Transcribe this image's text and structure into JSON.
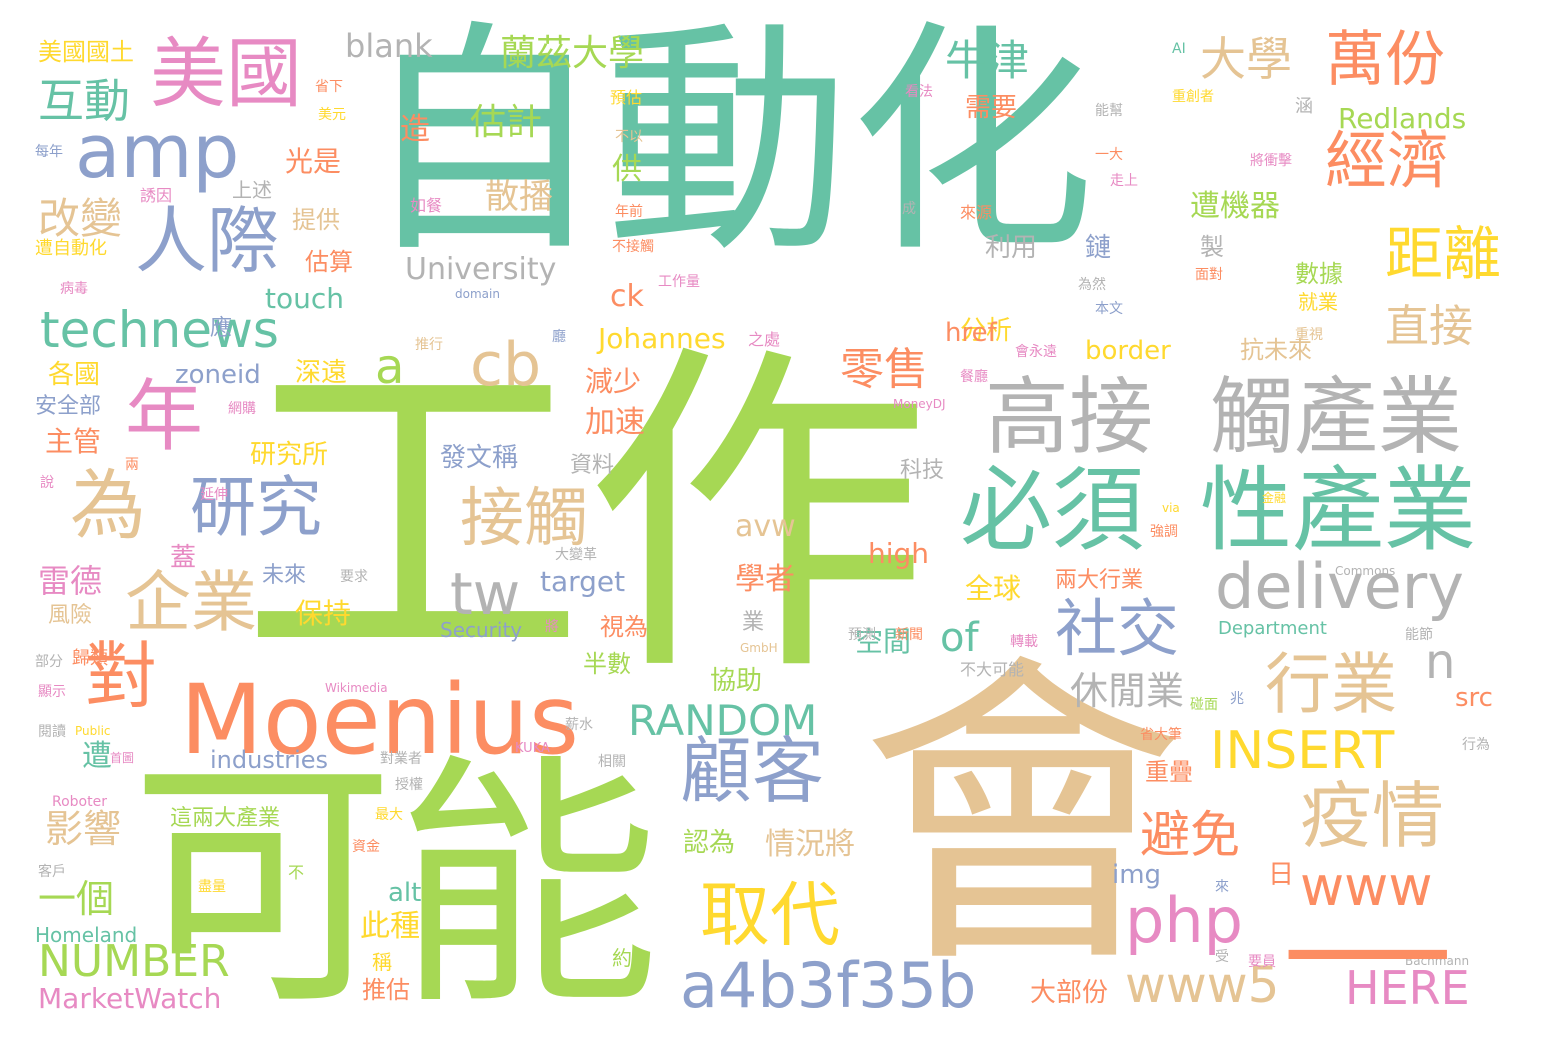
{
  "colors": {
    "teal": "#66c2a5",
    "green": "#a6d854",
    "tan": "#e5c494",
    "orange": "#fc8d62",
    "blue": "#8da0cb",
    "pink": "#e78ac3",
    "yellow": "#ffd92f",
    "gray": "#b3b3b3"
  },
  "words": [
    {
      "text": "自動化",
      "color": "teal"
    },
    {
      "text": "工作",
      "color": "green"
    },
    {
      "text": "會",
      "color": "tan"
    },
    {
      "text": "可能",
      "color": "green"
    },
    {
      "text": "Moenius",
      "color": "orange"
    },
    {
      "text": "高接",
      "color": "gray"
    },
    {
      "text": "觸產業",
      "color": "gray"
    },
    {
      "text": "必須",
      "color": "teal"
    },
    {
      "text": "性產業",
      "color": "teal"
    },
    {
      "text": "美國",
      "color": "pink"
    },
    {
      "text": "amp",
      "color": "blue"
    },
    {
      "text": "人際",
      "color": "blue"
    },
    {
      "text": "technews",
      "color": "teal"
    },
    {
      "text": "年",
      "color": "pink"
    },
    {
      "text": "為",
      "color": "tan"
    },
    {
      "text": "研究",
      "color": "blue"
    },
    {
      "text": "企業",
      "color": "tan"
    },
    {
      "text": "對",
      "color": "orange"
    },
    {
      "text": "萬份",
      "color": "orange"
    },
    {
      "text": "經濟",
      "color": "orange"
    },
    {
      "text": "距離",
      "color": "yellow"
    },
    {
      "text": "直接",
      "color": "tan"
    },
    {
      "text": "delivery",
      "color": "gray"
    },
    {
      "text": "社交",
      "color": "blue"
    },
    {
      "text": "行業",
      "color": "tan"
    },
    {
      "text": "疫情",
      "color": "tan"
    },
    {
      "text": "www",
      "color": "orange"
    },
    {
      "text": "顧客",
      "color": "blue"
    },
    {
      "text": "取代",
      "color": "yellow"
    },
    {
      "text": "php",
      "color": "pink"
    },
    {
      "text": "a4b3f35b",
      "color": "blue"
    },
    {
      "text": "www5",
      "color": "tan"
    },
    {
      "text": "HERE",
      "color": "pink"
    },
    {
      "text": "INSERT",
      "color": "yellow"
    },
    {
      "text": "RANDOM",
      "color": "teal"
    },
    {
      "text": "NUMBER",
      "color": "green"
    },
    {
      "text": "接觸",
      "color": "tan"
    },
    {
      "text": "tw",
      "color": "gray"
    },
    {
      "text": "cb",
      "color": "tan"
    },
    {
      "text": "a",
      "color": "green"
    },
    {
      "text": "牛津",
      "color": "teal"
    },
    {
      "text": "大學",
      "color": "tan"
    },
    {
      "text": "互動",
      "color": "teal"
    },
    {
      "text": "美國國土",
      "color": "yellow"
    },
    {
      "text": "blank",
      "color": "gray"
    },
    {
      "text": "蘭茲大學",
      "color": "green"
    },
    {
      "text": "估計",
      "color": "green"
    },
    {
      "text": "散播",
      "color": "tan"
    },
    {
      "text": "University",
      "color": "gray"
    },
    {
      "text": "改變",
      "color": "tan"
    },
    {
      "text": "光是",
      "color": "orange"
    },
    {
      "text": "上述",
      "color": "gray"
    },
    {
      "text": "提供",
      "color": "tan"
    },
    {
      "text": "估算",
      "color": "orange"
    },
    {
      "text": "touch",
      "color": "teal"
    },
    {
      "text": "zoneid",
      "color": "blue"
    },
    {
      "text": "深遠",
      "color": "yellow"
    },
    {
      "text": "各國",
      "color": "yellow"
    },
    {
      "text": "安全部",
      "color": "blue"
    },
    {
      "text": "主管",
      "color": "orange"
    },
    {
      "text": "研究所",
      "color": "yellow"
    },
    {
      "text": "雷德",
      "color": "pink"
    },
    {
      "text": "風險",
      "color": "tan"
    },
    {
      "text": "蓋",
      "color": "pink"
    },
    {
      "text": "未來",
      "color": "blue"
    },
    {
      "text": "保持",
      "color": "yellow"
    },
    {
      "text": "遭",
      "color": "teal"
    },
    {
      "text": "影響",
      "color": "tan"
    },
    {
      "text": "一個",
      "color": "green"
    },
    {
      "text": "industries",
      "color": "blue"
    },
    {
      "text": "這兩大產業",
      "color": "green"
    },
    {
      "text": "MarketWatch",
      "color": "pink"
    },
    {
      "text": "Homeland",
      "color": "teal"
    },
    {
      "text": "零售",
      "color": "orange"
    },
    {
      "text": "分析",
      "color": "yellow"
    },
    {
      "text": "href",
      "color": "orange"
    },
    {
      "text": "border",
      "color": "yellow"
    },
    {
      "text": "抗未來",
      "color": "tan"
    },
    {
      "text": "Redlands",
      "color": "green"
    },
    {
      "text": "遭機器",
      "color": "green"
    },
    {
      "text": "數據",
      "color": "green"
    },
    {
      "text": "就業",
      "color": "yellow"
    },
    {
      "text": "需要",
      "color": "orange"
    },
    {
      "text": "利用",
      "color": "gray"
    },
    {
      "text": "鏈",
      "color": "blue"
    },
    {
      "text": "製",
      "color": "gray"
    },
    {
      "text": "造",
      "color": "orange"
    },
    {
      "text": "供",
      "color": "green"
    },
    {
      "text": "ck",
      "color": "orange"
    },
    {
      "text": "Johannes",
      "color": "yellow"
    },
    {
      "text": "減少",
      "color": "orange"
    },
    {
      "text": "加速",
      "color": "orange"
    },
    {
      "text": "發文稱",
      "color": "blue"
    },
    {
      "text": "資料",
      "color": "gray"
    },
    {
      "text": "科技",
      "color": "gray"
    },
    {
      "text": "avw",
      "color": "tan"
    },
    {
      "text": "high",
      "color": "orange"
    },
    {
      "text": "全球",
      "color": "yellow"
    },
    {
      "text": "學者",
      "color": "orange"
    },
    {
      "text": "target",
      "color": "blue"
    },
    {
      "text": "Security",
      "color": "blue"
    },
    {
      "text": "視為",
      "color": "orange"
    },
    {
      "text": "半數",
      "color": "green"
    },
    {
      "text": "of",
      "color": "teal"
    },
    {
      "text": "空間",
      "color": "teal"
    },
    {
      "text": "協助",
      "color": "green"
    },
    {
      "text": "休閒業",
      "color": "gray"
    },
    {
      "text": "n",
      "color": "gray"
    },
    {
      "text": "src",
      "color": "orange"
    },
    {
      "text": "兩大行業",
      "color": "orange"
    },
    {
      "text": "Department",
      "color": "teal"
    },
    {
      "text": "避免",
      "color": "orange"
    },
    {
      "text": "重疊",
      "color": "orange"
    },
    {
      "text": "認為",
      "color": "green"
    },
    {
      "text": "情況將",
      "color": "tan"
    },
    {
      "text": "alt",
      "color": "teal"
    },
    {
      "text": "img",
      "color": "blue"
    },
    {
      "text": "日",
      "color": "orange"
    },
    {
      "text": "此種",
      "color": "yellow"
    },
    {
      "text": "推估",
      "color": "orange"
    },
    {
      "text": "大部份",
      "color": "orange"
    },
    {
      "text": "稱",
      "color": "yellow"
    },
    {
      "text": "約",
      "color": "green"
    },
    {
      "text": "業",
      "color": "gray"
    },
    {
      "text": "應",
      "color": "blue"
    },
    {
      "text": "省下",
      "color": "orange"
    },
    {
      "text": "每年",
      "color": "blue"
    },
    {
      "text": "美元",
      "color": "yellow"
    },
    {
      "text": "誘因",
      "color": "pink"
    },
    {
      "text": "遭自動化",
      "color": "yellow"
    },
    {
      "text": "病毒",
      "color": "pink"
    },
    {
      "text": "如餐",
      "color": "pink"
    },
    {
      "text": "預估",
      "color": "yellow"
    },
    {
      "text": "不以",
      "color": "tan"
    },
    {
      "text": "年前",
      "color": "orange"
    },
    {
      "text": "不接觸",
      "color": "orange"
    },
    {
      "text": "工作量",
      "color": "pink"
    },
    {
      "text": "domain",
      "color": "blue"
    },
    {
      "text": "推行",
      "color": "tan"
    },
    {
      "text": "網購",
      "color": "pink"
    },
    {
      "text": "說",
      "color": "pink"
    },
    {
      "text": "延伸",
      "color": "pink"
    },
    {
      "text": "兩",
      "color": "orange"
    },
    {
      "text": "部分",
      "color": "gray"
    },
    {
      "text": "歸類",
      "color": "orange"
    },
    {
      "text": "顯示",
      "color": "pink"
    },
    {
      "text": "閱讀",
      "color": "gray"
    },
    {
      "text": "Public",
      "color": "yellow"
    },
    {
      "text": "首圖",
      "color": "pink"
    },
    {
      "text": "Roboter",
      "color": "pink"
    },
    {
      "text": "客戶",
      "color": "gray"
    },
    {
      "text": "盡量",
      "color": "yellow"
    },
    {
      "text": "資金",
      "color": "orange"
    },
    {
      "text": "不",
      "color": "green"
    },
    {
      "text": "最大",
      "color": "yellow"
    },
    {
      "text": "授權",
      "color": "gray"
    },
    {
      "text": "對業者",
      "color": "gray"
    },
    {
      "text": "要求",
      "color": "gray"
    },
    {
      "text": "大變革",
      "color": "gray"
    },
    {
      "text": "將",
      "color": "pink"
    },
    {
      "text": "Wikimedia",
      "color": "pink"
    },
    {
      "text": "薪水",
      "color": "gray"
    },
    {
      "text": "KUKA",
      "color": "pink"
    },
    {
      "text": "相關",
      "color": "gray"
    },
    {
      "text": "GmbH",
      "color": "tan"
    },
    {
      "text": "預測",
      "color": "gray"
    },
    {
      "text": "新聞",
      "color": "orange"
    },
    {
      "text": "轉載",
      "color": "pink"
    },
    {
      "text": "不大可能",
      "color": "gray"
    },
    {
      "text": "碰面",
      "color": "green"
    },
    {
      "text": "兆",
      "color": "blue"
    },
    {
      "text": "MoneyDJ",
      "color": "pink"
    },
    {
      "text": "之處",
      "color": "pink"
    },
    {
      "text": "餐廳",
      "color": "pink"
    },
    {
      "text": "會永遠",
      "color": "pink"
    },
    {
      "text": "本文",
      "color": "blue"
    },
    {
      "text": "為然",
      "color": "gray"
    },
    {
      "text": "廳",
      "color": "blue"
    },
    {
      "text": "成",
      "color": "gray"
    },
    {
      "text": "來源",
      "color": "orange"
    },
    {
      "text": "看法",
      "color": "pink"
    },
    {
      "text": "AI",
      "color": "teal"
    },
    {
      "text": "能幫",
      "color": "gray"
    },
    {
      "text": "涵",
      "color": "gray"
    },
    {
      "text": "一大",
      "color": "orange"
    },
    {
      "text": "走上",
      "color": "pink"
    },
    {
      "text": "將衝擊",
      "color": "pink"
    },
    {
      "text": "重創者",
      "color": "yellow"
    },
    {
      "text": "面對",
      "color": "orange"
    },
    {
      "text": "重視",
      "color": "tan"
    },
    {
      "text": "via",
      "color": "yellow"
    },
    {
      "text": "強調",
      "color": "orange"
    },
    {
      "text": "金融",
      "color": "yellow"
    },
    {
      "text": "Commons",
      "color": "gray"
    },
    {
      "text": "能節",
      "color": "gray"
    },
    {
      "text": "省大筆",
      "color": "orange"
    },
    {
      "text": "行為",
      "color": "gray"
    },
    {
      "text": "來",
      "color": "blue"
    },
    {
      "text": "受",
      "color": "gray"
    },
    {
      "text": "要員",
      "color": "pink"
    },
    {
      "text": "Bachmann",
      "color": "gray"
    },
    {
      "text": "—",
      "color": "orange"
    }
  ]
}
